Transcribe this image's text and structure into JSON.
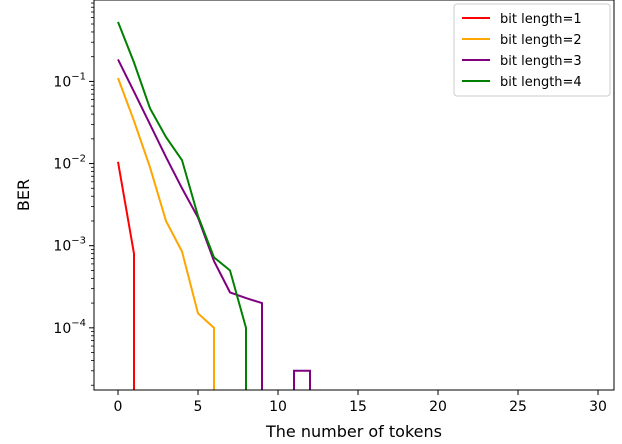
{
  "chart_data": {
    "type": "line",
    "title": "",
    "xlabel": "The number of tokens",
    "ylabel": "BER",
    "xscale": "linear",
    "yscale": "log",
    "xlim": [
      -1.5,
      31.0
    ],
    "ylim": [
      1.75e-05,
      0.98
    ],
    "xticks": [
      0,
      5,
      10,
      15,
      20,
      25,
      30
    ],
    "xtick_labels": [
      "0",
      "5",
      "10",
      "15",
      "20",
      "25",
      "30"
    ],
    "yticks": [
      0.0001,
      0.001,
      0.01,
      0.1
    ],
    "ytick_labels": [
      {
        "base": "10",
        "exp": "−4"
      },
      {
        "base": "10",
        "exp": "−3"
      },
      {
        "base": "10",
        "exp": "−2"
      },
      {
        "base": "10",
        "exp": "−1"
      }
    ],
    "grid": false,
    "legend_position": "top-right",
    "series": [
      {
        "name": "bit length=1",
        "color": "#ff0000",
        "points": [
          [
            0,
            0.0105
          ],
          [
            1,
            0.0008
          ],
          [
            1,
            0
          ]
        ]
      },
      {
        "name": "bit length=2",
        "color": "#ffa500",
        "points": [
          [
            0,
            0.11
          ],
          [
            1,
            0.033
          ],
          [
            2,
            0.009
          ],
          [
            3,
            0.002
          ],
          [
            4,
            0.00085
          ],
          [
            5,
            0.00015
          ],
          [
            6,
            0.0001
          ],
          [
            6,
            0
          ]
        ]
      },
      {
        "name": "bit length=3",
        "color": "#800080",
        "points": [
          [
            0,
            0.185
          ],
          [
            1,
            0.075
          ],
          [
            2,
            0.03
          ],
          [
            3,
            0.012
          ],
          [
            4,
            0.005
          ],
          [
            5,
            0.0022
          ],
          [
            6,
            0.00065
          ],
          [
            7,
            0.00027
          ],
          [
            8,
            0.00023
          ],
          [
            9,
            0.0002
          ],
          [
            9,
            0
          ],
          [
            11,
            0
          ],
          [
            11,
            3e-05
          ],
          [
            12,
            3e-05
          ],
          [
            12,
            0
          ]
        ]
      },
      {
        "name": "bit length=4",
        "color": "#008000",
        "points": [
          [
            0,
            0.53
          ],
          [
            1,
            0.17
          ],
          [
            2,
            0.047
          ],
          [
            3,
            0.021
          ],
          [
            4,
            0.011
          ],
          [
            5,
            0.0023
          ],
          [
            6,
            0.00072
          ],
          [
            7,
            0.0005
          ],
          [
            8,
            0.0001
          ],
          [
            8,
            0
          ]
        ]
      }
    ]
  }
}
